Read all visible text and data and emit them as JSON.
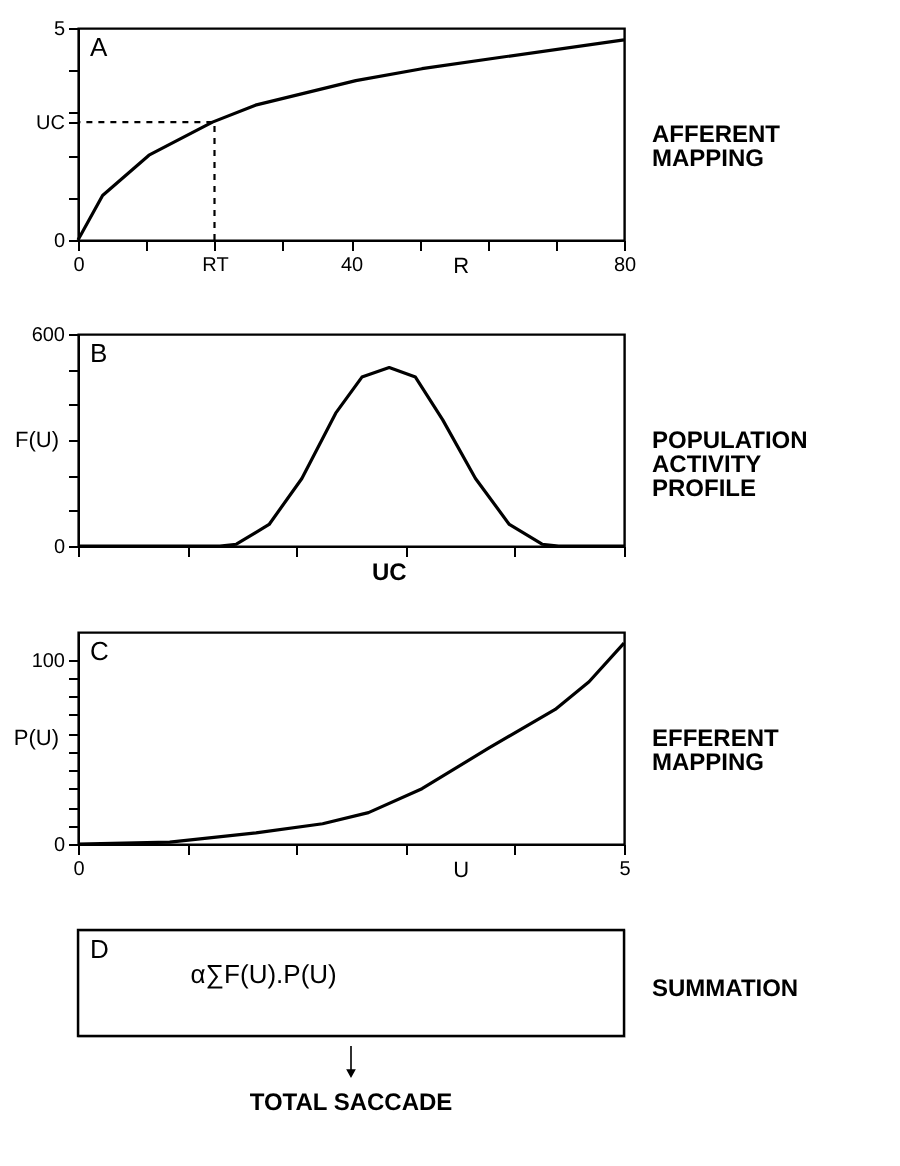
{
  "chart_data": [
    {
      "type": "line",
      "title": "A",
      "annotations": [
        "AFFERENT\nMAPPING"
      ],
      "xlabel": "R",
      "xlim": [
        0,
        80
      ],
      "xticks": [
        0,
        {
          "value": 10,
          "label": null
        },
        {
          "value": 20,
          "label": "RT"
        },
        {
          "value": 30,
          "label": null
        },
        40,
        {
          "value": 50,
          "label": null
        },
        {
          "value": 60,
          "label": null
        },
        {
          "value": 70,
          "label": null
        },
        80
      ],
      "ylim": [
        0,
        5
      ],
      "yticks": [
        0,
        {
          "value": 1,
          "label": null
        },
        {
          "value": 2,
          "label": null
        },
        {
          "value": 2.78,
          "label": "UC"
        },
        {
          "value": 3,
          "label": null
        },
        {
          "value": 4,
          "label": null
        },
        5
      ],
      "grid": false,
      "series": [
        {
          "color": "#000000",
          "x": [
            0,
            3.6,
            10.4,
            19.7,
            26,
            40.7,
            50.4,
            62,
            80
          ],
          "values": [
            0,
            1.05,
            2.0,
            2.78,
            3.18,
            3.76,
            4.04,
            4.31,
            4.72
          ]
        },
        {
          "color": "#000000",
          "line_style": "dashed",
          "x": [
            20,
            20,
            0
          ],
          "values": [
            0,
            2.78,
            2.78
          ]
        }
      ]
    },
    {
      "type": "line",
      "title": "B",
      "annotations": [
        "POPULATION\nACTIVITY\nPROFILE",
        "UC"
      ],
      "ylabel": "F(U)",
      "tick_labels": "y",
      "xlim": [
        0,
        5
      ],
      "xticks": [
        0,
        1,
        2,
        3,
        4,
        5
      ],
      "ylim": [
        0,
        600
      ],
      "yticks": [
        0,
        {
          "value": 100,
          "label": null
        },
        {
          "value": 200,
          "label": null
        },
        {
          "value": 300,
          "label": null
        },
        {
          "value": 400,
          "label": null
        },
        {
          "value": 500,
          "label": null
        },
        600
      ],
      "grid": false,
      "series": [
        {
          "color": "#000000",
          "x": [
            0,
            1.3,
            1.45,
            1.75,
            2.05,
            2.36,
            2.6,
            2.85,
            3.09,
            3.34,
            3.64,
            3.95,
            4.25,
            4.4,
            5
          ],
          "values": [
            0,
            0,
            5,
            61,
            191,
            376,
            478,
            505,
            478,
            357,
            191,
            61,
            5,
            0,
            0
          ]
        }
      ]
    },
    {
      "type": "line",
      "title": "C",
      "annotations": [
        "EFFERENT\nMAPPING"
      ],
      "ylabel": "P(U)",
      "xlabel": "U",
      "xlim": [
        0,
        5
      ],
      "xticks": [
        0,
        {
          "value": 1,
          "label": null
        },
        {
          "value": 2,
          "label": null
        },
        {
          "value": 3,
          "label": null
        },
        {
          "value": 4,
          "label": null
        },
        5
      ],
      "ylim": [
        0,
        115
      ],
      "yticks": [
        0,
        {
          "value": 10,
          "label": null
        },
        {
          "value": 20,
          "label": null
        },
        {
          "value": 30,
          "label": null
        },
        {
          "value": 40,
          "label": null
        },
        {
          "value": 50,
          "label": null
        },
        {
          "value": 60,
          "label": null
        },
        {
          "value": 70,
          "label": null
        },
        {
          "value": 80,
          "label": null
        },
        {
          "value": 90,
          "label": null
        },
        100
      ],
      "grid": false,
      "series": [
        {
          "color": "#000000",
          "x": [
            0,
            0.84,
            1.63,
            2.24,
            2.66,
            3.15,
            3.76,
            4.37,
            4.68,
            5
          ],
          "values": [
            0,
            1,
            6,
            11,
            17,
            30,
            52,
            73,
            88,
            109
          ]
        }
      ]
    },
    {
      "type": "other",
      "title": "D",
      "annotations": [
        "α∑F(U).P(U)",
        "SUMMATION",
        "TOTAL SACCADE"
      ]
    }
  ]
}
